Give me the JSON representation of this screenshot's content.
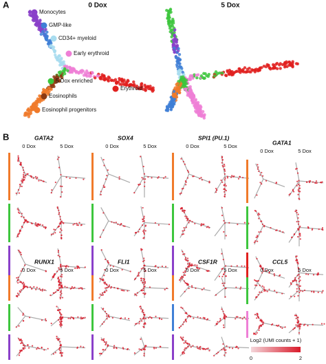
{
  "panel_a": {
    "label": "A",
    "conditions": [
      "0 Dox",
      "5 Dox"
    ],
    "legend": [
      {
        "name": "Monocytes",
        "color": "#8a3fc9"
      },
      {
        "name": "GMP-like",
        "color": "#3f7fd6"
      },
      {
        "name": "CD34+ myeloid",
        "color": "#a8dcef"
      },
      {
        "name": "Early erythroid",
        "color": "#ee7fd6"
      },
      {
        "name": "5 Dox enriched",
        "color": "#3dc63d"
      },
      {
        "name": "Eosinophils",
        "color": "#8b3a14"
      },
      {
        "name": "Eosinophil progenitors",
        "color": "#f07a2a"
      },
      {
        "name": "Erythroid",
        "color": "#e0201e"
      }
    ]
  },
  "panel_b": {
    "label": "B",
    "conditions": [
      "0 Dox",
      "5 Dox"
    ],
    "genes": [
      {
        "name": "GATA2"
      },
      {
        "name": "SOX4"
      },
      {
        "name": "SPI1 (PU.1)"
      },
      {
        "name": "GATA1"
      },
      {
        "name": "RUNX1"
      },
      {
        "name": "FLI1"
      },
      {
        "name": "CSF1R"
      },
      {
        "name": "CCL5"
      }
    ],
    "colorbar": {
      "title": "Log2 (UMI counts + 1)",
      "ticks": [
        0,
        2
      ]
    }
  }
}
